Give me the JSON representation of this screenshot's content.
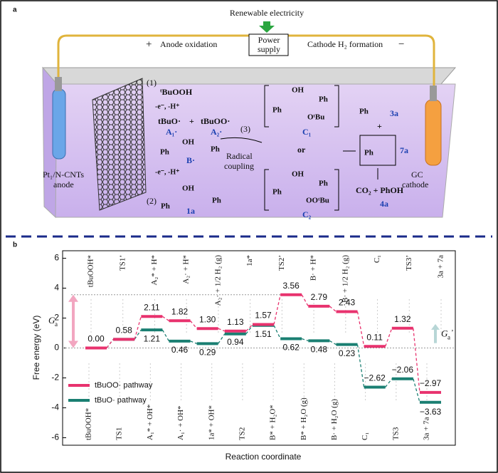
{
  "panel_a": {
    "letter": "a",
    "power_title": "Renewable electricity",
    "plus": "+",
    "anode_label": "Anode oxidation",
    "power_1": "Power",
    "power_2": "supply",
    "cathode_label": "Cathode H₂ formation",
    "minus": "−",
    "step1": "(1)",
    "reactant": "ᵗBuOOH",
    "ox1": "-e⁻, -H⁺",
    "rad1": "tBuO·",
    "rad1_id": "A₁·",
    "plus2": "+",
    "rad2": "tBuOO·",
    "rad2_id": "A₂·",
    "b_id": "B·",
    "ox2": "-e⁻, -H⁺",
    "step2": "(2)",
    "sub_id": "1a",
    "step3": "(3)",
    "coupling_1": "Radical",
    "coupling_2": "coupling",
    "c1": "C₁",
    "or": "or",
    "c2": "C₂",
    "ald_id": "3a",
    "plus3": "+",
    "ester_id": "7a",
    "final": "CO₂ + PhOH",
    "final_id": "4a",
    "anode_1": "Pt₁/N-CNTs",
    "anode_2": "anode",
    "cathode_1": "GC",
    "cathode_2": "cathode",
    "ph": "Ph",
    "oh": "OH",
    "otbu": "OᵗBu",
    "ootbu": "OOᵗBu"
  },
  "chart_data": {
    "type": "energy_profile",
    "letter": "b",
    "y_label": "Free energy (eV)",
    "x_label": "Reaction coordinate",
    "top_labels": [
      "tBuOOH*",
      "TS1’",
      "A₂* + H*",
      "A₂· + H*",
      "A₂· + 1/2 H₂ (g)",
      "1a*",
      "TS2’",
      "B· + H*",
      "B· + 1/2 H₂ (g)",
      "C₁",
      "TS3’",
      "3a + 7a"
    ],
    "bottom_labels": [
      "tBuOOH*",
      "TS1",
      "A₁* + OH*",
      "A₁· + OH*",
      "1a* + OH*",
      "TS2",
      "B* + H₂O*",
      "B* + H₂O (g)",
      "B· + H₂O (g)",
      "C₁",
      "TS3",
      "3a + 7a"
    ],
    "series": [
      {
        "name": "tBuOO· pathway",
        "color": "#e8326e",
        "values": [
          0.0,
          0.58,
          2.11,
          1.82,
          1.3,
          1.13,
          1.57,
          3.56,
          2.79,
          2.43,
          0.11,
          1.32,
          -2.97
        ],
        "value_labels": [
          null,
          null,
          "2.11",
          "1.82",
          "1.30",
          "1.13",
          "1.57",
          "3.56",
          "2.79",
          "2.43",
          "0.11",
          "1.32",
          "−2.97"
        ]
      },
      {
        "name": "tBuO· pathway",
        "color": "#1a7f72",
        "values": [
          0.0,
          0.58,
          1.21,
          0.46,
          0.29,
          0.94,
          1.51,
          0.62,
          0.48,
          0.23,
          -2.62,
          -2.06,
          -3.63
        ],
        "value_labels": [
          "0.00",
          "0.58",
          "1.21",
          "0.46",
          "0.29",
          "0.94",
          "1.51",
          "0.62",
          "0.48",
          "0.23",
          "−2.62",
          "−2.06",
          "−3.63"
        ]
      }
    ],
    "ylim": [
      -6.5,
      6.5
    ],
    "yticks": [
      -6,
      -4,
      -2,
      0,
      2,
      4,
      6
    ],
    "annotations": {
      "ga_symbol": "G",
      "ga_sub": "a",
      "gap_symbol": "G",
      "gap_sub": "a",
      "gap_prime": "’"
    }
  }
}
